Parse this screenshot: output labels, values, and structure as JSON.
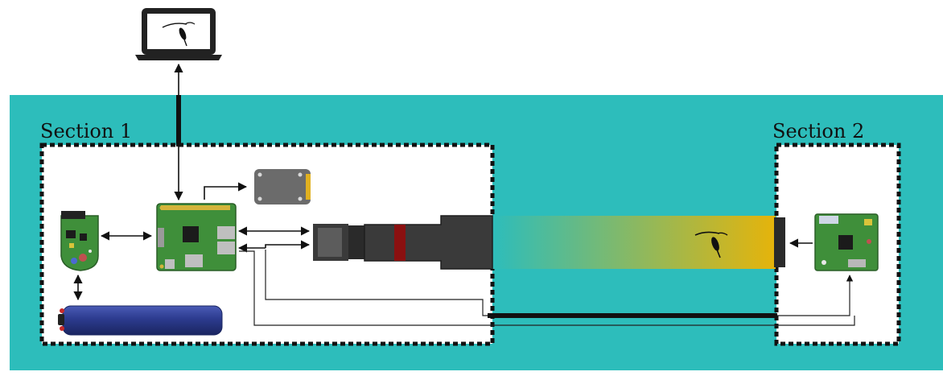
{
  "sections": [
    {
      "label": "Section 1"
    },
    {
      "label": "Section 2"
    }
  ],
  "colors": {
    "water": "#2dbdbb",
    "section_box": "#ffffff",
    "dotted_border": "#111111",
    "battery": "#2c3b8e",
    "light_beam_start": "#2dbdbb",
    "light_beam_end": "#e6b40a",
    "camera_body": "#3a3a3a",
    "lens_ring": "#8a1010",
    "pcb_green": "#3f8f3a",
    "laptop": "#222222"
  },
  "icons": [
    "laptop-icon",
    "copepod-icon",
    "sensor-board-icon",
    "single-board-computer-icon",
    "storage-drive-icon",
    "battery-icon",
    "camera-lens-icon",
    "light-beam-icon",
    "led-driver-board-icon"
  ]
}
